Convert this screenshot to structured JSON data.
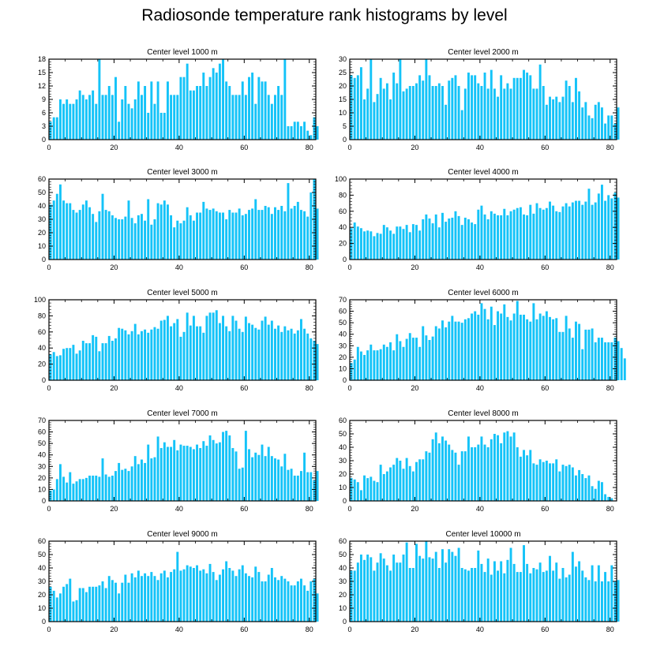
{
  "title": "Radiosonde temperature rank histograms by level",
  "colors": {
    "bar": "#14c3f8",
    "frame": "#000000"
  },
  "chart_data": [
    {
      "type": "bar",
      "title": "Center level 1000 m",
      "xlim": [
        0,
        82
      ],
      "ylim": [
        0,
        18
      ],
      "yticks": [
        0,
        3,
        6,
        9,
        12,
        15,
        18
      ],
      "xticks": [
        0,
        20,
        40,
        60,
        80
      ],
      "values": [
        4,
        5,
        5,
        9,
        8,
        9,
        8,
        8,
        9,
        11,
        10,
        9,
        10,
        11,
        8,
        18,
        10,
        10,
        12,
        10,
        14,
        4,
        9,
        12,
        8,
        7,
        9,
        13,
        10,
        12,
        6,
        13,
        8,
        13,
        6,
        6,
        13,
        10,
        10,
        10,
        14,
        14,
        17,
        11,
        11,
        12,
        12,
        15,
        12,
        14,
        16,
        15,
        17,
        18,
        13,
        12,
        10,
        10,
        10,
        13,
        10,
        14,
        15,
        8,
        14,
        13,
        13,
        10,
        8,
        10,
        12,
        10,
        18,
        3,
        3,
        4,
        4,
        3,
        4,
        2,
        1,
        5,
        3
      ]
    },
    {
      "type": "bar",
      "title": "Center level 2000 m",
      "xlim": [
        0,
        82
      ],
      "ylim": [
        0,
        30
      ],
      "yticks": [
        0,
        5,
        10,
        15,
        20,
        25,
        30
      ],
      "xticks": [
        0,
        20,
        40,
        60,
        80
      ],
      "values": [
        24,
        23,
        24,
        27,
        15,
        19,
        30,
        14,
        17,
        23,
        19,
        21,
        15,
        25,
        21,
        30,
        18,
        19,
        20,
        20,
        21,
        24,
        22,
        30,
        24,
        20,
        20,
        21,
        20,
        13,
        22,
        23,
        24,
        20,
        11,
        19,
        25,
        24,
        24,
        21,
        20,
        25,
        19,
        26,
        19,
        16,
        24,
        19,
        21,
        19,
        23,
        23,
        23,
        26,
        25,
        24,
        19,
        19,
        28,
        20,
        13,
        16,
        15,
        16,
        14,
        16,
        22,
        20,
        14,
        23,
        18,
        12,
        14,
        9,
        8,
        13,
        14,
        12,
        6,
        9,
        9,
        6,
        12
      ]
    },
    {
      "type": "bar",
      "title": "Center level 3000 m",
      "xlim": [
        0,
        82
      ],
      "ylim": [
        0,
        60
      ],
      "yticks": [
        0,
        10,
        20,
        30,
        40,
        50,
        60
      ],
      "xticks": [
        0,
        20,
        40,
        60,
        80
      ],
      "values": [
        41,
        44,
        49,
        56,
        44,
        42,
        42,
        37,
        35,
        37,
        41,
        44,
        39,
        34,
        28,
        36,
        49,
        37,
        36,
        33,
        31,
        30,
        30,
        32,
        44,
        31,
        27,
        33,
        34,
        29,
        45,
        26,
        30,
        42,
        41,
        44,
        41,
        33,
        24,
        29,
        27,
        29,
        39,
        33,
        29,
        35,
        35,
        43,
        38,
        37,
        38,
        36,
        35,
        35,
        30,
        37,
        35,
        35,
        38,
        33,
        34,
        37,
        38,
        45,
        37,
        37,
        40,
        39,
        34,
        39,
        37,
        40,
        36,
        57,
        38,
        40,
        43,
        37,
        36,
        32,
        50,
        61,
        38
      ]
    },
    {
      "type": "bar",
      "title": "Center level 4000 m",
      "xlim": [
        0,
        82
      ],
      "ylim": [
        0,
        100
      ],
      "yticks": [
        0,
        20,
        40,
        60,
        80,
        100
      ],
      "xticks": [
        0,
        20,
        40,
        60,
        80
      ],
      "values": [
        39,
        46,
        41,
        39,
        35,
        36,
        35,
        29,
        33,
        32,
        43,
        40,
        36,
        32,
        41,
        41,
        38,
        43,
        34,
        44,
        43,
        36,
        50,
        56,
        51,
        45,
        56,
        40,
        58,
        47,
        51,
        52,
        60,
        54,
        43,
        52,
        50,
        46,
        44,
        62,
        67,
        56,
        50,
        60,
        57,
        55,
        55,
        63,
        55,
        60,
        62,
        64,
        65,
        56,
        55,
        68,
        57,
        70,
        64,
        62,
        64,
        72,
        67,
        60,
        59,
        66,
        70,
        66,
        71,
        73,
        73,
        68,
        72,
        88,
        68,
        71,
        82,
        93,
        73,
        80,
        76,
        83,
        77
      ]
    },
    {
      "type": "bar",
      "title": "Center level 5000 m",
      "xlim": [
        0,
        82
      ],
      "ylim": [
        0,
        100
      ],
      "yticks": [
        0,
        20,
        40,
        60,
        80,
        100
      ],
      "xticks": [
        0,
        20,
        40,
        60,
        80
      ],
      "values": [
        32,
        35,
        30,
        31,
        39,
        40,
        40,
        44,
        33,
        37,
        49,
        46,
        46,
        56,
        54,
        36,
        46,
        46,
        55,
        49,
        52,
        65,
        64,
        62,
        57,
        61,
        70,
        57,
        61,
        63,
        59,
        63,
        66,
        64,
        74,
        75,
        80,
        67,
        71,
        76,
        54,
        60,
        84,
        68,
        80,
        67,
        67,
        59,
        80,
        84,
        84,
        87,
        71,
        80,
        67,
        61,
        80,
        74,
        64,
        60,
        79,
        71,
        69,
        65,
        63,
        74,
        79,
        69,
        74,
        64,
        68,
        60,
        67,
        62,
        64,
        58,
        62,
        76,
        64,
        58,
        52,
        49,
        45
      ]
    },
    {
      "type": "bar",
      "title": "Center level 6000 m",
      "xlim": [
        0,
        82
      ],
      "ylim": [
        0,
        70
      ],
      "yticks": [
        0,
        10,
        20,
        30,
        40,
        50,
        60,
        70
      ],
      "xticks": [
        0,
        20,
        40,
        60,
        80
      ],
      "values": [
        15,
        18,
        29,
        25,
        22,
        26,
        31,
        26,
        26,
        27,
        31,
        29,
        33,
        26,
        40,
        34,
        29,
        36,
        41,
        37,
        37,
        29,
        47,
        39,
        35,
        38,
        47,
        45,
        52,
        46,
        51,
        56,
        51,
        51,
        50,
        53,
        54,
        58,
        60,
        57,
        67,
        62,
        53,
        64,
        48,
        60,
        58,
        66,
        55,
        52,
        58,
        69,
        57,
        57,
        53,
        51,
        67,
        53,
        58,
        56,
        60,
        55,
        53,
        54,
        42,
        42,
        56,
        45,
        37,
        51,
        49,
        27,
        44,
        44,
        45,
        33,
        37,
        37,
        33,
        33,
        33,
        37,
        34,
        28,
        19
      ]
    },
    {
      "type": "bar",
      "title": "Center level 7000 m",
      "xlim": [
        0,
        82
      ],
      "ylim": [
        0,
        70
      ],
      "yticks": [
        0,
        10,
        20,
        30,
        40,
        50,
        60,
        70
      ],
      "xticks": [
        0,
        20,
        40,
        60,
        80
      ],
      "values": [
        9,
        10,
        19,
        32,
        21,
        16,
        25,
        15,
        17,
        19,
        19,
        20,
        22,
        22,
        22,
        21,
        37,
        23,
        21,
        22,
        26,
        33,
        27,
        28,
        26,
        30,
        39,
        32,
        36,
        33,
        49,
        37,
        38,
        56,
        46,
        51,
        47,
        47,
        53,
        44,
        49,
        48,
        48,
        47,
        45,
        49,
        46,
        52,
        48,
        57,
        53,
        50,
        51,
        60,
        61,
        57,
        46,
        43,
        28,
        29,
        61,
        45,
        38,
        42,
        40,
        49,
        39,
        47,
        39,
        37,
        36,
        30,
        41,
        27,
        28,
        22,
        22,
        26,
        42,
        25,
        25,
        18,
        26
      ]
    },
    {
      "type": "bar",
      "title": "Center level 8000 m",
      "xlim": [
        0,
        82
      ],
      "ylim": [
        0,
        60
      ],
      "yticks": [
        0,
        10,
        20,
        30,
        40,
        50,
        60
      ],
      "xticks": [
        0,
        20,
        40,
        60,
        80
      ],
      "values": [
        17,
        16,
        14,
        8,
        19,
        17,
        18,
        15,
        14,
        27,
        20,
        22,
        25,
        27,
        32,
        30,
        24,
        32,
        26,
        22,
        29,
        31,
        31,
        37,
        36,
        46,
        51,
        43,
        48,
        45,
        42,
        38,
        36,
        27,
        37,
        37,
        48,
        40,
        40,
        42,
        48,
        42,
        40,
        46,
        50,
        49,
        43,
        51,
        52,
        48,
        51,
        40,
        33,
        38,
        34,
        38,
        28,
        27,
        31,
        29,
        30,
        28,
        28,
        31,
        22,
        27,
        26,
        27,
        25,
        19,
        23,
        20,
        17,
        19,
        11,
        9,
        15,
        14,
        5,
        3,
        2
      ]
    },
    {
      "type": "bar",
      "title": "Center level 9000 m",
      "xlim": [
        0,
        82
      ],
      "ylim": [
        0,
        60
      ],
      "yticks": [
        0,
        10,
        20,
        30,
        40,
        50,
        60
      ],
      "xticks": [
        0,
        20,
        40,
        60,
        80
      ],
      "values": [
        26,
        23,
        18,
        21,
        26,
        28,
        32,
        15,
        16,
        25,
        25,
        22,
        26,
        26,
        26,
        27,
        30,
        25,
        34,
        31,
        29,
        21,
        29,
        35,
        29,
        36,
        33,
        38,
        34,
        36,
        34,
        37,
        34,
        31,
        36,
        38,
        33,
        37,
        39,
        52,
        38,
        39,
        42,
        41,
        40,
        42,
        38,
        39,
        36,
        43,
        37,
        31,
        35,
        39,
        45,
        40,
        38,
        34,
        39,
        42,
        36,
        34,
        33,
        41,
        37,
        30,
        30,
        35,
        40,
        33,
        31,
        34,
        32,
        30,
        27,
        27,
        30,
        32,
        27,
        23,
        30,
        32,
        21
      ]
    },
    {
      "type": "bar",
      "title": "Center level 10000 m",
      "xlim": [
        0,
        82
      ],
      "ylim": [
        0,
        60
      ],
      "yticks": [
        0,
        10,
        20,
        30,
        40,
        50,
        60
      ],
      "xticks": [
        0,
        20,
        40,
        60,
        80
      ],
      "values": [
        38,
        38,
        44,
        50,
        46,
        50,
        48,
        38,
        44,
        51,
        47,
        42,
        38,
        50,
        44,
        44,
        50,
        59,
        40,
        40,
        58,
        49,
        47,
        61,
        48,
        47,
        52,
        40,
        54,
        44,
        54,
        52,
        49,
        55,
        40,
        39,
        38,
        40,
        40,
        53,
        43,
        37,
        47,
        35,
        45,
        38,
        45,
        36,
        46,
        55,
        43,
        37,
        37,
        57,
        43,
        36,
        40,
        39,
        44,
        37,
        38,
        49,
        38,
        44,
        32,
        40,
        33,
        35,
        52,
        41,
        45,
        38,
        33,
        31,
        42,
        30,
        42,
        30,
        37,
        30,
        42,
        30,
        31
      ]
    }
  ]
}
